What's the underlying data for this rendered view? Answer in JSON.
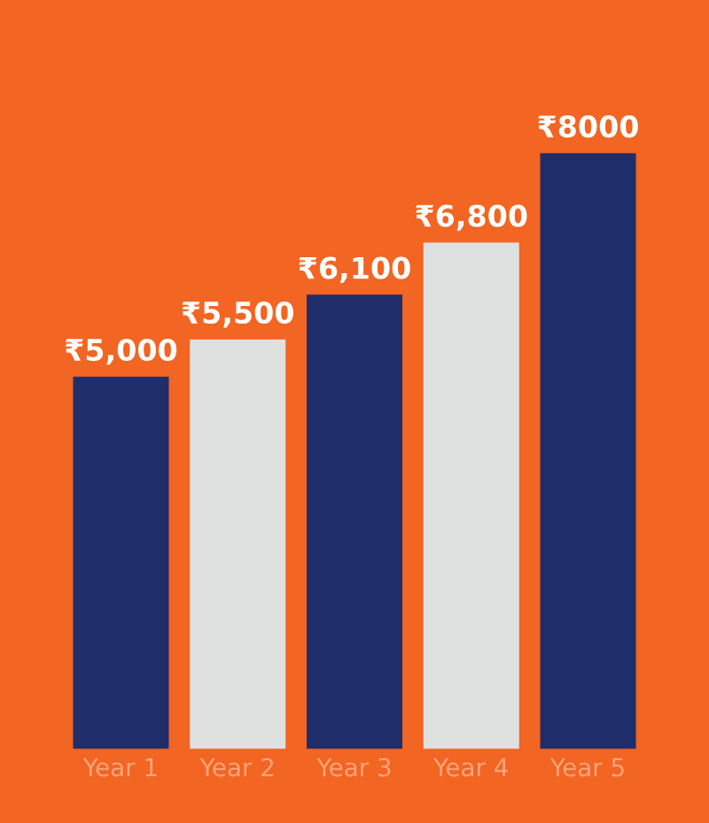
{
  "chart_data": {
    "type": "bar",
    "categories": [
      "Year 1",
      "Year 2",
      "Year 3",
      "Year 4",
      "Year 5"
    ],
    "values": [
      5000,
      5500,
      6100,
      6800,
      8000
    ],
    "colors": [
      "#1f2d6b",
      "#dfe0e0",
      "#1f2d6b",
      "#dfe0e0",
      "#1f2d6b"
    ],
    "value_labels": [
      "₹5,000",
      "₹5,500",
      "₹6,100",
      "₹6,800",
      "₹8000"
    ],
    "tick_labels": "x"
  }
}
